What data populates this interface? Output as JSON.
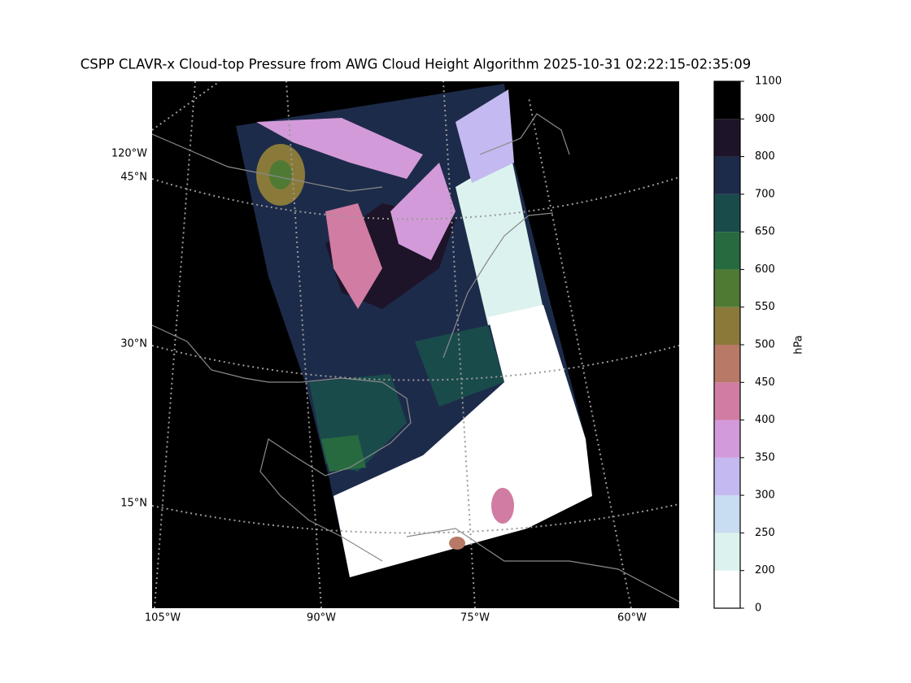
{
  "title": "CSPP CLAVR-x Cloud-top Pressure from AWG Cloud Height Algorithm 2025-10-31 02:22:15-02:35:09",
  "map": {
    "lat_labels": [
      "45°N",
      "30°N",
      "15°N"
    ],
    "lon_labels": [
      "105°W",
      "90°W",
      "75°W",
      "60°W"
    ],
    "meridian_label": "120°W"
  },
  "colorbar": {
    "label": "hPa",
    "ticks": [
      0,
      200,
      250,
      300,
      350,
      400,
      450,
      500,
      550,
      600,
      650,
      700,
      800,
      900,
      1100
    ],
    "colors": [
      "#ffffff",
      "#dcf2ee",
      "#c8dcf2",
      "#c4b9f0",
      "#d39ad9",
      "#d17ca2",
      "#b87966",
      "#8a7a3a",
      "#4f7a33",
      "#276a3f",
      "#1a4b4b",
      "#1d2b4a",
      "#1e1429",
      "#000000"
    ]
  }
}
